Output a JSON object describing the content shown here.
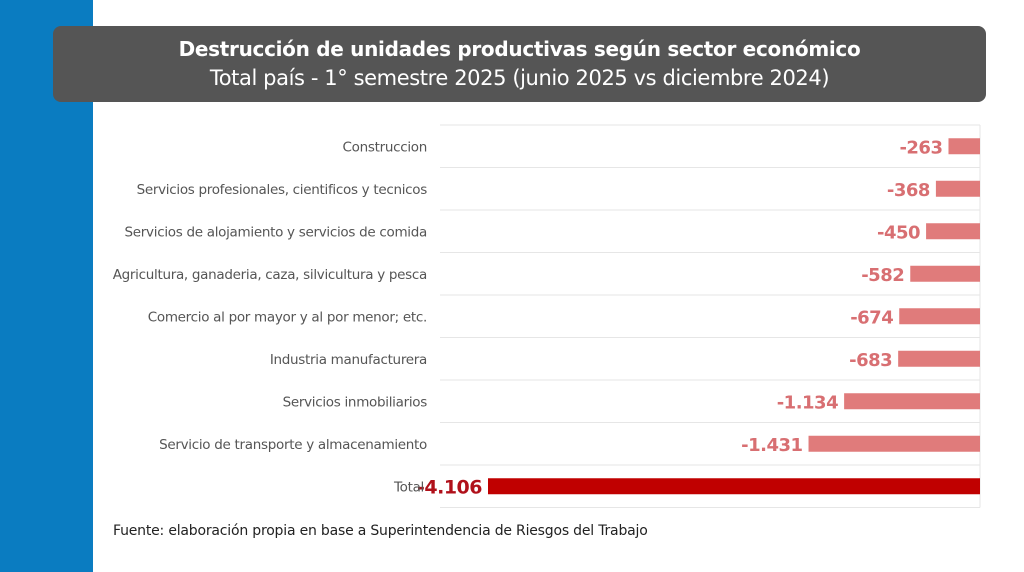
{
  "header": {
    "title": "Destrucción de unidades productivas según sector económico",
    "subtitle": "Total país - 1° semestre 2025 (junio 2025 vs diciembre 2024)"
  },
  "footer": {
    "source": "Fuente: elaboración propia en base a Superintendencia de Riesgos del Trabajo"
  },
  "colors": {
    "sidebar": "#0a7cc1",
    "header_bg": "#555555",
    "bar": "#e07b7b",
    "bar_label": "#d86f72",
    "total_bar": "#c00000",
    "total_label": "#b0101a",
    "category_text": "#555555",
    "grid": "#e6e6e6"
  },
  "chart_data": {
    "type": "bar",
    "orientation": "horizontal",
    "title": "Destrucción de unidades productivas según sector económico",
    "subtitle": "Total país - 1° semestre 2025 (junio 2025 vs diciembre 2024)",
    "xlabel": "",
    "ylabel": "",
    "xlim": [
      -4106,
      0
    ],
    "grid": true,
    "legend": "none",
    "categories": [
      "Construccion",
      "Servicios profesionales, cientificos y tecnicos",
      "Servicios de alojamiento y servicios de comida",
      "Agricultura, ganaderia, caza, silvicultura y pesca",
      "Comercio al por mayor y al por menor; etc.",
      "Industria manufacturera",
      "Servicios inmobiliarios",
      "Servicio de transporte y almacenamiento",
      "Total"
    ],
    "values": [
      -263,
      -368,
      -450,
      -582,
      -674,
      -683,
      -1134,
      -1431,
      -4106
    ],
    "data_labels": [
      "-263",
      "-368",
      "-450",
      "-582",
      "-674",
      "-683",
      "-1.134",
      "-1.431",
      "-4.106"
    ],
    "highlight": "Total"
  }
}
